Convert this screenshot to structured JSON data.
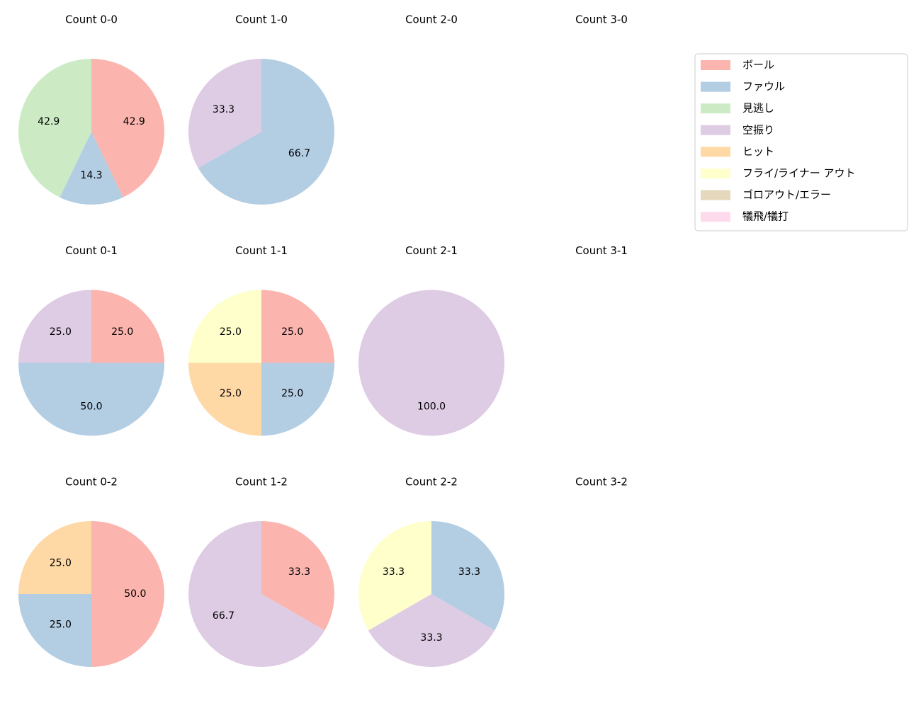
{
  "legend": {
    "labels": [
      "ボール",
      "ファウル",
      "見逃し",
      "空振り",
      "ヒット",
      "フライ/ライナー アウト",
      "ゴロアウト/エラー",
      "犠飛/犠打"
    ],
    "colors": [
      "#fbb4ae",
      "#b3cde3",
      "#ccebc5",
      "#decbe4",
      "#fed9a6",
      "#ffffcc",
      "#e5d8bd",
      "#fddaec"
    ]
  },
  "chart_data": [
    {
      "type": "pie",
      "title": "Count 0-0",
      "categories": [
        "ボール",
        "ファウル",
        "見逃し"
      ],
      "values": [
        42.9,
        14.3,
        42.9
      ]
    },
    {
      "type": "pie",
      "title": "Count 1-0",
      "categories": [
        "ファウル",
        "空振り"
      ],
      "values": [
        66.7,
        33.3
      ]
    },
    {
      "type": "pie",
      "title": "Count 2-0",
      "categories": [],
      "values": []
    },
    {
      "type": "pie",
      "title": "Count 3-0",
      "categories": [],
      "values": []
    },
    {
      "type": "pie",
      "title": "Count 0-1",
      "categories": [
        "ボール",
        "ファウル",
        "空振り"
      ],
      "values": [
        25,
        50,
        25
      ],
      "value_labels": [
        "25.0",
        "50.0",
        "25.0"
      ]
    },
    {
      "type": "pie",
      "title": "Count 1-1",
      "categories": [
        "ボール",
        "ファウル",
        "ヒット",
        "フライ/ライナー アウト"
      ],
      "values": [
        25,
        25,
        25,
        25
      ],
      "value_labels": [
        "25.0",
        "25.0",
        "25.0",
        "25.0"
      ]
    },
    {
      "type": "pie",
      "title": "Count 2-1",
      "categories": [
        "空振り"
      ],
      "values": [
        100
      ],
      "value_labels": [
        "100.0"
      ]
    },
    {
      "type": "pie",
      "title": "Count 3-1",
      "categories": [],
      "values": []
    },
    {
      "type": "pie",
      "title": "Count 0-2",
      "categories": [
        "ボール",
        "ファウル",
        "ヒット"
      ],
      "values": [
        50,
        25,
        25
      ],
      "value_labels": [
        "50.0",
        "25.0",
        "25.0"
      ]
    },
    {
      "type": "pie",
      "title": "Count 1-2",
      "categories": [
        "ボール",
        "空振り"
      ],
      "values": [
        33.3,
        66.7
      ]
    },
    {
      "type": "pie",
      "title": "Count 2-2",
      "categories": [
        "ファウル",
        "空振り",
        "フライ/ライナー アウト"
      ],
      "values": [
        33.3,
        33.3,
        33.3
      ]
    },
    {
      "type": "pie",
      "title": "Count 3-2",
      "categories": [],
      "values": []
    }
  ]
}
